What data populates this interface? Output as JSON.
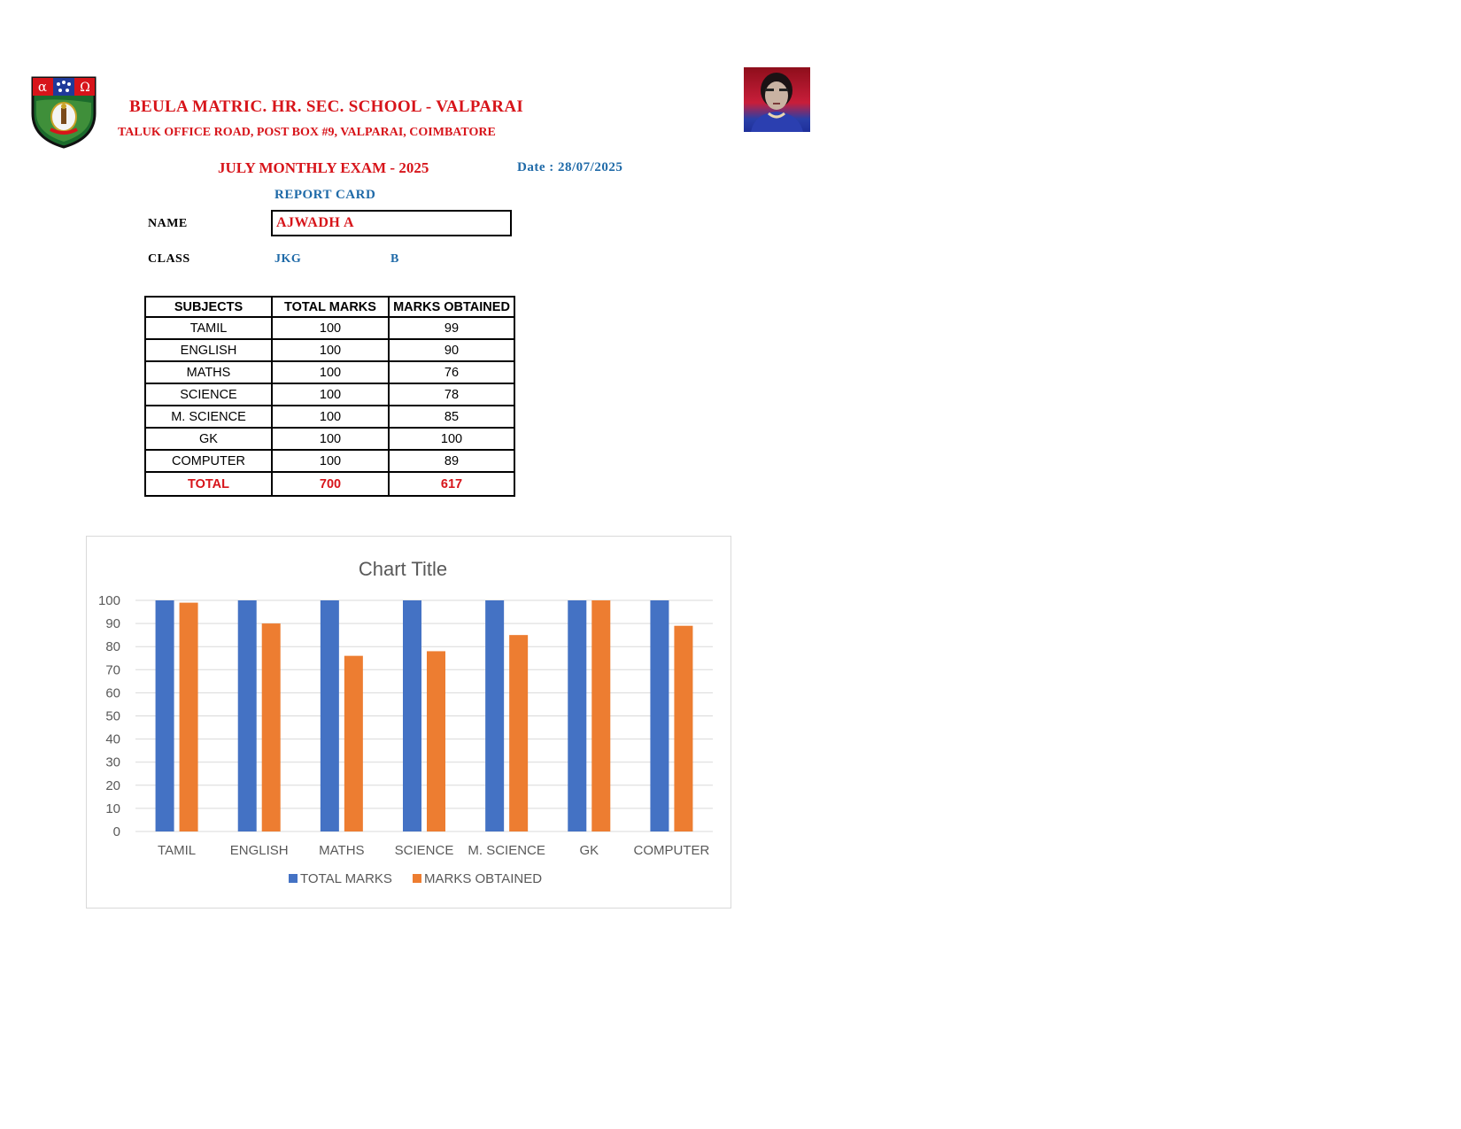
{
  "header": {
    "school_name": "BEULA MATRIC. HR. SEC. SCHOOL - VALPARAI",
    "school_address": "TALUK OFFICE ROAD, POST BOX #9, VALPARAI, COIMBATORE",
    "logo_icon": "school-crest-icon",
    "photo_icon": "student-photo"
  },
  "exam": {
    "title": "JULY MONTHLY EXAM - 2025",
    "date_text": "Date : 28/07/2025",
    "report_label": "REPORT CARD"
  },
  "student": {
    "name_label": "NAME",
    "name": "AJWADH A",
    "class_label": "CLASS",
    "class": "JKG",
    "section": "B"
  },
  "marks_table": {
    "headers": [
      "SUBJECTS",
      "TOTAL MARKS",
      "MARKS OBTAINED"
    ],
    "rows": [
      [
        "TAMIL",
        "100",
        "99"
      ],
      [
        "ENGLISH",
        "100",
        "90"
      ],
      [
        "MATHS",
        "100",
        "76"
      ],
      [
        "SCIENCE",
        "100",
        "78"
      ],
      [
        "M. SCIENCE",
        "100",
        "85"
      ],
      [
        "GK",
        "100",
        "100"
      ],
      [
        "COMPUTER",
        "100",
        "89"
      ]
    ],
    "total": [
      "TOTAL",
      "700",
      "617"
    ]
  },
  "colors": {
    "header_red": "#d7141a",
    "accent_blue": "#1f6aa8",
    "series_blue": "#4472c4",
    "series_orange": "#ed7d31"
  },
  "chart_data": {
    "type": "bar",
    "title": "Chart Title",
    "categories": [
      "TAMIL",
      "ENGLISH",
      "MATHS",
      "SCIENCE",
      "M. SCIENCE",
      "GK",
      "COMPUTER"
    ],
    "series": [
      {
        "name": "TOTAL MARKS",
        "color": "#4472c4",
        "values": [
          100,
          100,
          100,
          100,
          100,
          100,
          100
        ]
      },
      {
        "name": "MARKS OBTAINED",
        "color": "#ed7d31",
        "values": [
          99,
          90,
          76,
          78,
          85,
          100,
          89
        ]
      }
    ],
    "ylim": [
      0,
      100
    ],
    "yticks": [
      0,
      10,
      20,
      30,
      40,
      50,
      60,
      70,
      80,
      90,
      100
    ],
    "grid": true,
    "legend": "bottom"
  }
}
